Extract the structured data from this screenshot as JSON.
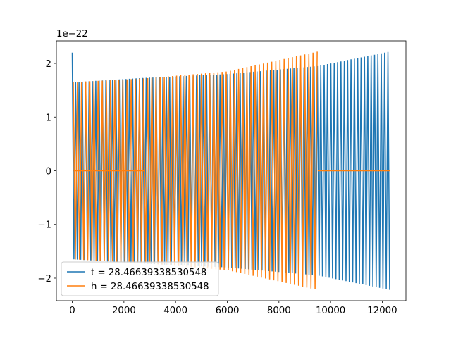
{
  "chart_data": {
    "type": "line",
    "title": "",
    "xlabel": "",
    "ylabel": "",
    "offset_text": "1e−22",
    "xlim": [
      -615,
      12915
    ],
    "ylim": [
      -2.42,
      2.42
    ],
    "x_ticks": [
      0,
      2000,
      4000,
      6000,
      8000,
      10000,
      12000
    ],
    "y_ticks": [
      -2,
      -1,
      0,
      1,
      2
    ],
    "x_tick_labels": [
      "0",
      "2000",
      "4000",
      "6000",
      "8000",
      "10000",
      "12000"
    ],
    "y_tick_labels": [
      "−2",
      "−1",
      "0",
      "1",
      "2"
    ],
    "grid": false,
    "legend_position": "lower-left",
    "series": [
      {
        "name": "t = 28.46639338530548",
        "color": "#1f77b4",
        "description": "chirp-like oscillation, nonzero from 0 to ~12300 with amplitude growing",
        "x_start": 0,
        "x_end": 12300,
        "amp_points": [
          [
            0,
            2.2
          ],
          [
            50,
            1.65
          ],
          [
            2800,
            1.73
          ],
          [
            6000,
            1.8
          ],
          [
            9500,
            1.95
          ],
          [
            12300,
            2.22
          ]
        ]
      },
      {
        "name": "h = 28.46639338530548",
        "color": "#ff7f0e",
        "description": "oscillation from 0 to ~9500, flat at zero on 50–2800 segment overlay and after 9500",
        "x_start": 0,
        "x_end": 9500,
        "amp_points": [
          [
            0,
            1.65
          ],
          [
            2800,
            1.72
          ],
          [
            6000,
            1.85
          ],
          [
            9500,
            2.22
          ]
        ],
        "flat_after": 9500,
        "flat_to": 12300
      }
    ]
  }
}
